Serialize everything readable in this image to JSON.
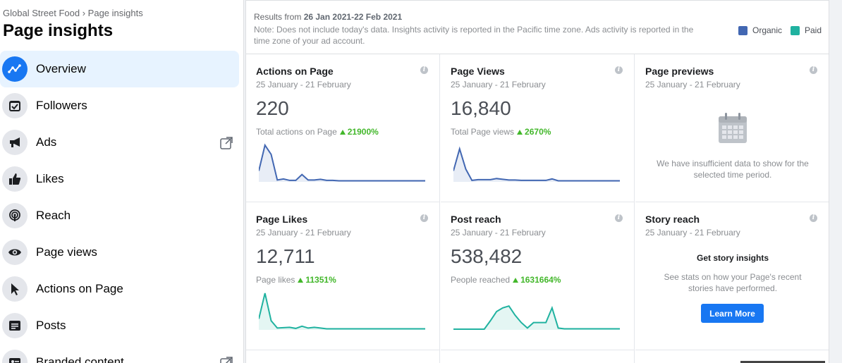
{
  "breadcrumb": "Global Street Food › Page insights",
  "page_title": "Page insights",
  "sidebar": {
    "items": [
      {
        "label": "Overview",
        "icon": "trend-line-icon",
        "active": true
      },
      {
        "label": "Followers",
        "icon": "calendar-check-icon"
      },
      {
        "label": "Ads",
        "icon": "megaphone-icon",
        "external": true
      },
      {
        "label": "Likes",
        "icon": "thumbs-up-icon"
      },
      {
        "label": "Reach",
        "icon": "broadcast-icon"
      },
      {
        "label": "Page views",
        "icon": "eye-icon"
      },
      {
        "label": "Actions on Page",
        "icon": "cursor-icon"
      },
      {
        "label": "Posts",
        "icon": "document-icon"
      },
      {
        "label": "Branded content",
        "icon": "id-card-icon",
        "external": true
      }
    ]
  },
  "header": {
    "results_prefix": "Results from",
    "results_range": "26 Jan 2021-22 Feb 2021",
    "note": "Note: Does not include today's data. Insights activity is reported in the Pacific time zone. Ads activity is reported in the time zone of your ad account.",
    "legend": [
      {
        "label": "Organic",
        "color": "#4267b2"
      },
      {
        "label": "Paid",
        "color": "#20b2a0"
      }
    ]
  },
  "cards": {
    "actions": {
      "title": "Actions on Page",
      "date": "25 January - 21 February",
      "value": "220",
      "sub": "Total actions on Page",
      "delta": "21900%",
      "line_color": "#4267b2",
      "series": [
        0.3,
        1,
        0.75,
        0.05,
        0.08,
        0.04,
        0.04,
        0.2,
        0.05,
        0.05,
        0.07,
        0.04,
        0.04,
        0.03,
        0.03,
        0.03,
        0.03,
        0.03,
        0.03,
        0.03,
        0.03,
        0.03,
        0.03,
        0.03,
        0.03,
        0.03,
        0.03,
        0.03
      ]
    },
    "views": {
      "title": "Page Views",
      "date": "25 January - 21 February",
      "value": "16,840",
      "sub": "Total Page views",
      "delta": "2670%",
      "line_color": "#4267b2",
      "series": [
        0.3,
        0.9,
        0.35,
        0.04,
        0.06,
        0.06,
        0.06,
        0.09,
        0.07,
        0.05,
        0.05,
        0.04,
        0.04,
        0.04,
        0.04,
        0.04,
        0.08,
        0.03,
        0.03,
        0.03,
        0.03,
        0.03,
        0.03,
        0.03,
        0.03,
        0.03,
        0.03,
        0.03
      ]
    },
    "previews": {
      "title": "Page previews",
      "date": "25 January - 21 February",
      "empty": "We have insufficient data to show for the selected time period."
    },
    "likes": {
      "title": "Page Likes",
      "date": "25 January - 21 February",
      "value": "12,711",
      "sub": "Page likes",
      "delta": "11351%",
      "line_color": "#20b2a0",
      "series": [
        0.3,
        1,
        0.25,
        0.05,
        0.06,
        0.07,
        0.04,
        0.1,
        0.05,
        0.07,
        0.05,
        0.03,
        0.03,
        0.03,
        0.03,
        0.03,
        0.03,
        0.03,
        0.03,
        0.03,
        0.03,
        0.03,
        0.03,
        0.03,
        0.03,
        0.03,
        0.03,
        0.03
      ]
    },
    "reach": {
      "title": "Post reach",
      "date": "25 January - 21 February",
      "value": "538,482",
      "sub": "People reached",
      "delta": "1631664%",
      "line_color": "#20b2a0",
      "series": [
        0.02,
        0.02,
        0.02,
        0.02,
        0.02,
        0.02,
        0.25,
        0.5,
        0.6,
        0.65,
        0.4,
        0.2,
        0.05,
        0.2,
        0.2,
        0.2,
        0.6,
        0.05,
        0.03,
        0.03,
        0.03,
        0.03,
        0.03,
        0.03,
        0.03,
        0.03,
        0.03,
        0.03
      ]
    },
    "story": {
      "title": "Story reach",
      "date": "25 January - 21 February",
      "heading": "Get story insights",
      "text": "See stats on how your Page's recent stories have performed.",
      "button": "Learn More"
    }
  }
}
